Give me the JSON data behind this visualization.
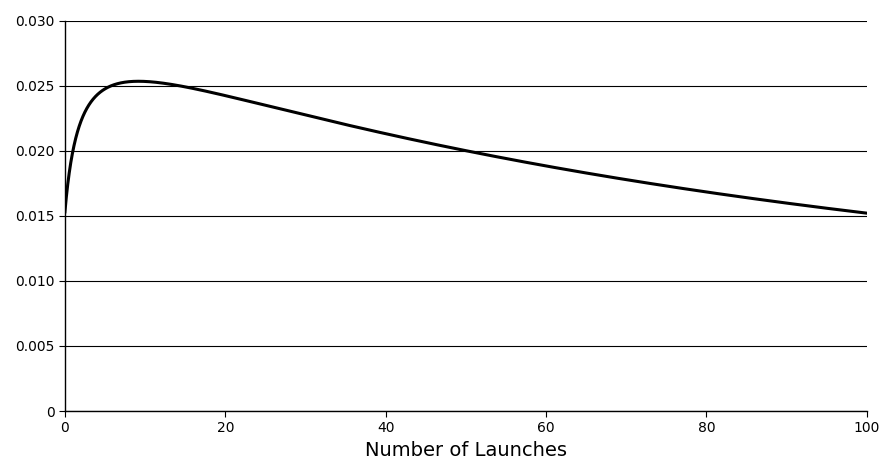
{
  "title": "",
  "xlabel": "Number of Launches",
  "ylabel": "",
  "xlim": [
    0,
    100
  ],
  "ylim": [
    0,
    0.03
  ],
  "yticks": [
    0,
    0.005,
    0.01,
    0.015,
    0.02,
    0.025,
    0.03
  ],
  "xticks": [
    0,
    20,
    40,
    60,
    80,
    100
  ],
  "line_color": "#000000",
  "line_width": 2.2,
  "background_color": "#ffffff",
  "grid_color": "#000000",
  "figsize": [
    8.95,
    4.75
  ],
  "dpi": 100,
  "curve_C": 0.0009,
  "curve_b": 0.034,
  "curve_D": 0.01515
}
